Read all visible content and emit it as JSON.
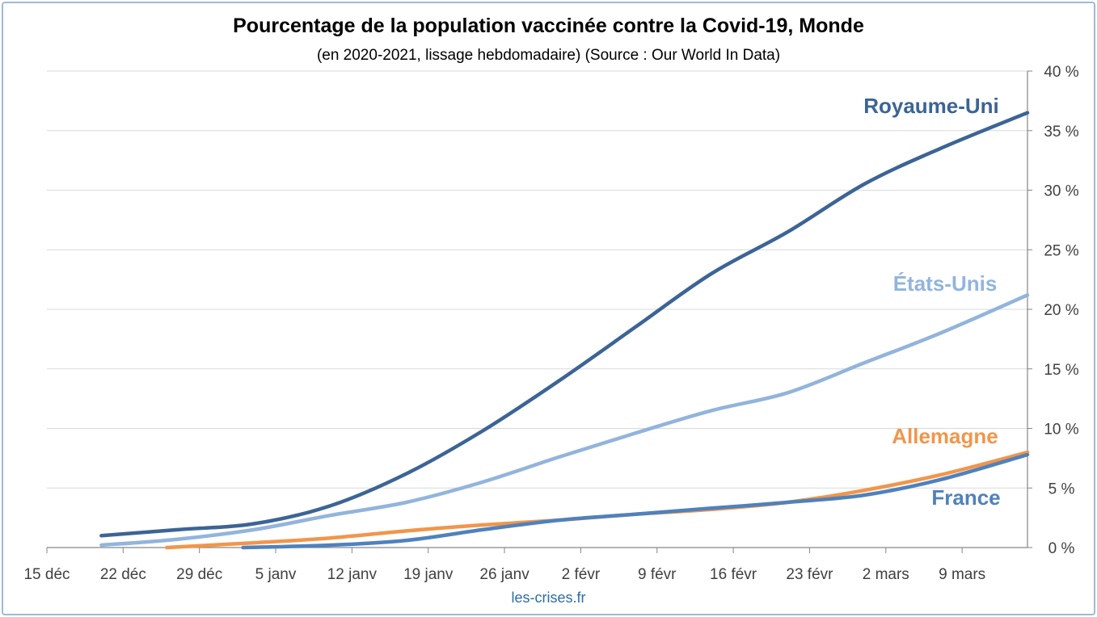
{
  "chart_data": {
    "type": "line",
    "title": "Pourcentage de la population vaccinée contre la Covid-19, Monde",
    "subtitle": "(en 2020-2021, lissage hebdomadaire) (Source : Our World In Data)",
    "footer": "les-crises.fr",
    "xlabel": "",
    "ylabel": "",
    "x_start": "2020-12-15",
    "x_end": "2021-03-15",
    "x_ticks": [
      "15 déc",
      "22 déc",
      "29 déc",
      "5 janv",
      "12 janv",
      "19 janv",
      "26 janv",
      "2 févr",
      "9 févr",
      "16 févr",
      "23 févr",
      "2 mars",
      "9 mars"
    ],
    "y_ticks": [
      "0 %",
      "5 %",
      "10 %",
      "15 %",
      "20 %",
      "25 %",
      "30 %",
      "35 %",
      "40 %"
    ],
    "ylim": [
      0,
      40
    ],
    "y_axis_position": "right",
    "grid": true,
    "series": [
      {
        "name": "Royaume-Uni",
        "color": "#3c6496",
        "x": [
          "2020-12-20",
          "2020-12-27",
          "2021-01-03",
          "2021-01-10",
          "2021-01-17",
          "2021-01-24",
          "2021-01-31",
          "2021-02-07",
          "2021-02-14",
          "2021-02-21",
          "2021-02-28",
          "2021-03-07",
          "2021-03-15"
        ],
        "values": [
          1.0,
          1.5,
          2.0,
          3.5,
          6.2,
          9.8,
          14.0,
          18.5,
          23.0,
          26.5,
          30.5,
          33.5,
          36.5
        ]
      },
      {
        "name": "États-Unis",
        "color": "#92b4dc",
        "x": [
          "2020-12-20",
          "2020-12-27",
          "2021-01-03",
          "2021-01-10",
          "2021-01-17",
          "2021-01-24",
          "2021-01-31",
          "2021-02-07",
          "2021-02-14",
          "2021-02-21",
          "2021-02-28",
          "2021-03-07",
          "2021-03-15"
        ],
        "values": [
          0.2,
          0.7,
          1.5,
          2.7,
          3.8,
          5.5,
          7.6,
          9.6,
          11.5,
          13.0,
          15.5,
          18.0,
          21.2
        ]
      },
      {
        "name": "Allemagne",
        "color": "#f0964b",
        "x": [
          "2020-12-26",
          "2021-01-03",
          "2021-01-10",
          "2021-01-17",
          "2021-01-24",
          "2021-01-31",
          "2021-02-07",
          "2021-02-14",
          "2021-02-21",
          "2021-02-28",
          "2021-03-07",
          "2021-03-15"
        ],
        "values": [
          0.0,
          0.4,
          0.8,
          1.4,
          1.9,
          2.3,
          2.8,
          3.2,
          3.8,
          4.8,
          6.1,
          8.0
        ]
      },
      {
        "name": "France",
        "color": "#4f81bd",
        "x": [
          "2021-01-02",
          "2021-01-10",
          "2021-01-17",
          "2021-01-24",
          "2021-01-31",
          "2021-02-07",
          "2021-02-14",
          "2021-02-21",
          "2021-02-28",
          "2021-03-07",
          "2021-03-15"
        ],
        "values": [
          0.0,
          0.2,
          0.6,
          1.5,
          2.3,
          2.8,
          3.3,
          3.8,
          4.4,
          5.7,
          7.8
        ]
      }
    ]
  }
}
